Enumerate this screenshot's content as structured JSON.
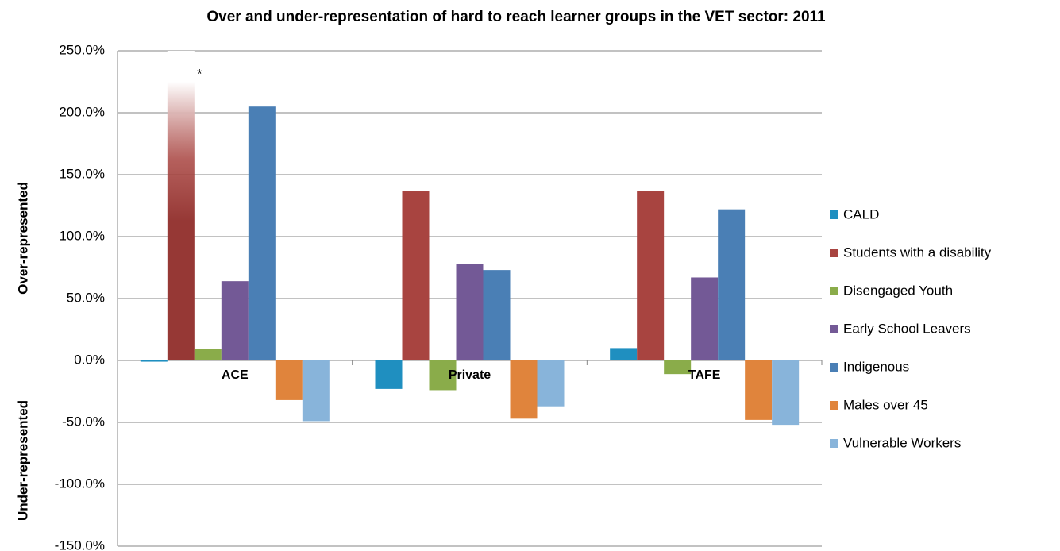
{
  "chart_data": {
    "type": "bar",
    "title": "Over and under-representation of hard to reach learner groups in the VET sector: 2011",
    "axis_labels": [
      "Over-represented",
      "Under-represented"
    ],
    "annotation": "*",
    "categories": [
      "ACE",
      "Private",
      "TAFE"
    ],
    "series": [
      {
        "name": "CALD",
        "color": "#1f8fc0",
        "values": [
          -1,
          -23,
          10
        ]
      },
      {
        "name": "Students with a disability",
        "color": "#a84440",
        "values": [
          250,
          137,
          137
        ]
      },
      {
        "name": "Disengaged Youth",
        "color": "#8aac4a",
        "values": [
          9,
          -24,
          -11
        ]
      },
      {
        "name": "Early School Leavers",
        "color": "#735996",
        "values": [
          64,
          78,
          67
        ]
      },
      {
        "name": "Indigenous",
        "color": "#4a7fb5",
        "values": [
          205,
          73,
          122
        ]
      },
      {
        "name": "Males over 45",
        "color": "#e0843c",
        "values": [
          -32,
          -47,
          -48
        ]
      },
      {
        "name": "Vulnerable Workers",
        "color": "#88b4da",
        "values": [
          -49,
          -37,
          -52
        ]
      }
    ],
    "ylim": [
      -150,
      250
    ],
    "yticks": [
      {
        "value": -150,
        "label": "-150.0%"
      },
      {
        "value": -100,
        "label": "-100.0%"
      },
      {
        "value": -50,
        "label": "-50.0%"
      },
      {
        "value": 0,
        "label": "0.0%"
      },
      {
        "value": 50,
        "label": "50.0%"
      },
      {
        "value": 100,
        "label": "100.0%"
      },
      {
        "value": 150,
        "label": "150.0%"
      },
      {
        "value": 200,
        "label": "200.0%"
      },
      {
        "value": 250,
        "label": "250.0%"
      }
    ],
    "grid": true,
    "legend": "right"
  }
}
